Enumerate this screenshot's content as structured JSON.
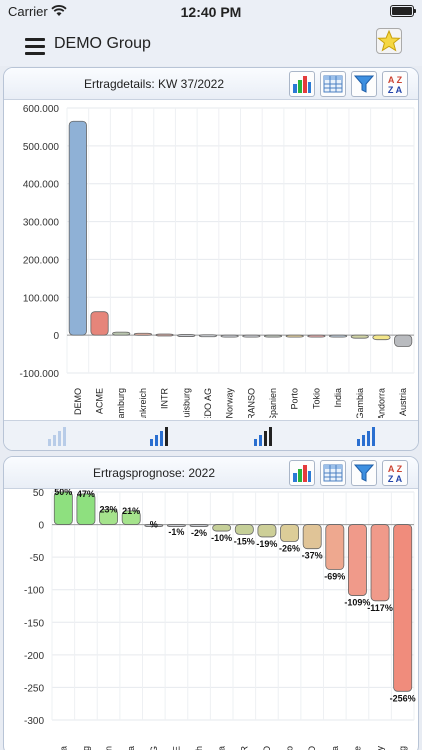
{
  "status": {
    "carrier": "Carrier",
    "time": "12:40 PM"
  },
  "nav": {
    "title": "DEMO Group"
  },
  "panels": {
    "top": {
      "title": "Ertragdetails: KW 37/2022"
    },
    "bottom": {
      "title": "Ertragsprognose: 2022"
    }
  },
  "icons": {
    "menu": "hamburger-menu-icon",
    "favorite": "star-icon",
    "chart": "bar-chart-icon",
    "table": "table-icon",
    "filter": "funnel-filter-icon",
    "sort": "sort-az-icon"
  },
  "chart_data": [
    {
      "type": "bar",
      "title": "Ertragdetails: KW 37/2022",
      "categories": [
        "DEMO",
        "ACME",
        "Hamburg",
        "Frankreich",
        "INTR",
        "Duisburg",
        "EDO AG",
        "Norway",
        "TRANSO",
        "Spanien",
        "Porto",
        "Tokio",
        "India",
        "Gambia",
        "Andorra",
        "Austria"
      ],
      "values": [
        565000,
        62000,
        8000,
        5000,
        3000,
        1500,
        1000,
        -500,
        -1000,
        -2000,
        -3000,
        -4000,
        -5000,
        -8000,
        -12000,
        -30000
      ],
      "colors": [
        "#8fb1d6",
        "#e6857a",
        "#b9c5ae",
        "#ddab9e",
        "#c7a39d",
        "#c9cbd0",
        "#c9cbd0",
        "#c9cbd0",
        "#c9cbd0",
        "#bcc2b8",
        "#e0cf9f",
        "#e0a9a9",
        "#b9c7d3",
        "#cfd2a4",
        "#f3e68a",
        "#b9bbbf"
      ],
      "ylim": [
        -100000,
        600000
      ],
      "yticks": [
        -100000,
        0,
        100000,
        200000,
        300000,
        400000,
        500000,
        600000
      ],
      "ytick_labels": [
        "-100.000",
        "0",
        "100.000",
        "200.000",
        "300.000",
        "400.000",
        "500.000",
        "600.000"
      ],
      "grid": true
    },
    {
      "type": "bar",
      "title": "Ertragsprognose: 2022",
      "values": [
        50,
        47,
        23,
        21,
        0,
        -1,
        -2,
        -10,
        -15,
        -19,
        -26,
        -37,
        -69,
        -109,
        -117,
        -256
      ],
      "labels": [
        "50%",
        "47%",
        "23%",
        "21%",
        "%",
        "-1%",
        "-2%",
        "-10%",
        "-15%",
        "-19%",
        "-26%",
        "-37%",
        "-69%",
        "-109%",
        "-117%",
        "-256%"
      ],
      "colors": [
        "#8ee07f",
        "#8ee07f",
        "#a5e38c",
        "#a5e38c",
        "#c9cbd0",
        "#c9cbd0",
        "#c9cbd0",
        "#c5cf98",
        "#c5cf98",
        "#cdcf98",
        "#dccd98",
        "#e0c497",
        "#eea88f",
        "#f09a8a",
        "#f09a8a",
        "#f08c7c"
      ],
      "ylim": [
        -300,
        50
      ],
      "yticks": [
        -300,
        -250,
        -200,
        -150,
        -100,
        -50,
        0,
        50
      ],
      "ytick_labels": [
        "-300",
        "-250",
        "-200",
        "-150",
        "-100",
        "-50",
        "0",
        "50"
      ],
      "x_tick_fragments": [
        "a",
        "g",
        "n",
        "a",
        "G",
        "E",
        "h",
        "a",
        "R",
        "O",
        "o",
        "O",
        "a",
        "e",
        "y",
        "g"
      ],
      "grid": true
    }
  ]
}
